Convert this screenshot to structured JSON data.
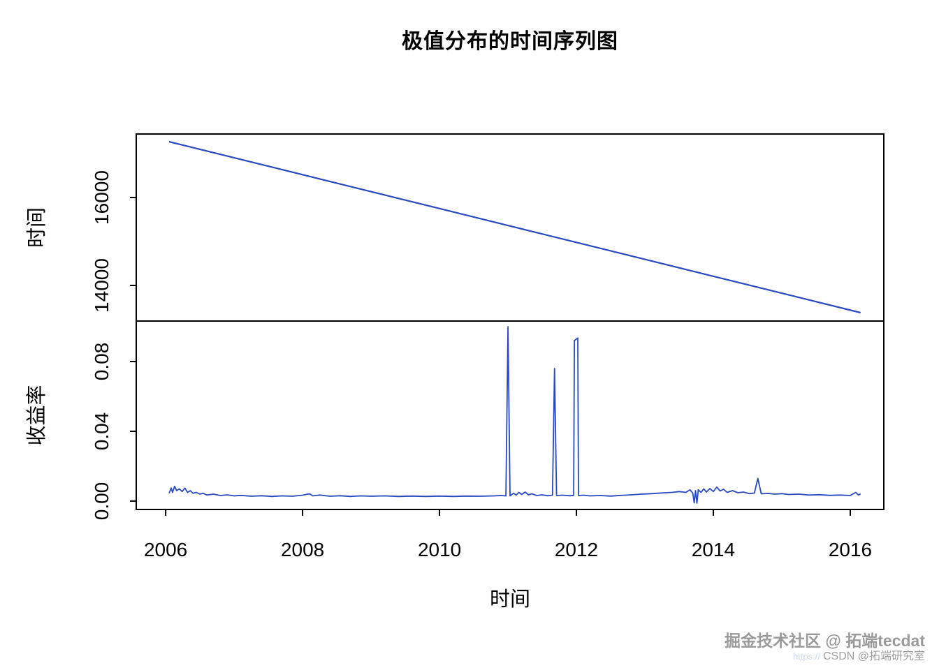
{
  "title": "极值分布的时间序列图",
  "x_axis": {
    "label": "时间",
    "ticks": [
      {
        "v": 2006,
        "label": "2006"
      },
      {
        "v": 2008,
        "label": "2008"
      },
      {
        "v": 2010,
        "label": "2010"
      },
      {
        "v": 2012,
        "label": "2012"
      },
      {
        "v": 2014,
        "label": "2014"
      },
      {
        "v": 2016,
        "label": "2016"
      }
    ]
  },
  "watermark": {
    "line1": "掘金技术社区 @ 拓端tecdat",
    "line2": "CSDN @拓端研究室",
    "url_fragment": "https://"
  },
  "colors": {
    "line": "#2a49c0",
    "axis": "#000000",
    "background": "#ffffff"
  },
  "chart_data": [
    {
      "type": "line",
      "name": "date-index-series",
      "ylabel": "时间",
      "xlim": [
        2005.57,
        2016.49
      ],
      "ylim": [
        13190,
        17444
      ],
      "yticks": [
        {
          "v": 14000,
          "label": "14000"
        },
        {
          "v": 16000,
          "label": "16000"
        }
      ],
      "points": [
        [
          2006.05,
          17270
        ],
        [
          2016.15,
          13380
        ]
      ]
    },
    {
      "type": "line",
      "name": "return-rate-series",
      "ylabel": "收益率",
      "xlim": [
        2005.57,
        2016.49
      ],
      "ylim": [
        -0.0048,
        0.1032
      ],
      "yticks": [
        {
          "v": 0,
          "label": "0.00"
        },
        {
          "v": 0.04,
          "label": "0.04"
        },
        {
          "v": 0.08,
          "label": "0.08"
        }
      ],
      "points": [
        [
          2006.05,
          0.0045
        ],
        [
          2006.08,
          0.0075
        ],
        [
          2006.1,
          0.005
        ],
        [
          2006.13,
          0.0085
        ],
        [
          2006.16,
          0.006
        ],
        [
          2006.2,
          0.007
        ],
        [
          2006.24,
          0.0055
        ],
        [
          2006.28,
          0.0075
        ],
        [
          2006.32,
          0.005
        ],
        [
          2006.36,
          0.006
        ],
        [
          2006.4,
          0.0045
        ],
        [
          2006.45,
          0.005
        ],
        [
          2006.5,
          0.004
        ],
        [
          2006.55,
          0.0045
        ],
        [
          2006.6,
          0.0035
        ],
        [
          2006.7,
          0.004
        ],
        [
          2006.8,
          0.0032
        ],
        [
          2006.9,
          0.0036
        ],
        [
          2007.0,
          0.003
        ],
        [
          2007.1,
          0.0033
        ],
        [
          2007.25,
          0.0028
        ],
        [
          2007.4,
          0.0031
        ],
        [
          2007.55,
          0.0027
        ],
        [
          2007.7,
          0.003
        ],
        [
          2007.85,
          0.0028
        ],
        [
          2008.0,
          0.0034
        ],
        [
          2008.1,
          0.0042
        ],
        [
          2008.15,
          0.003
        ],
        [
          2008.25,
          0.0035
        ],
        [
          2008.4,
          0.0028
        ],
        [
          2008.55,
          0.0031
        ],
        [
          2008.7,
          0.0027
        ],
        [
          2008.85,
          0.003
        ],
        [
          2009.0,
          0.0028
        ],
        [
          2009.2,
          0.003
        ],
        [
          2009.4,
          0.0027
        ],
        [
          2009.6,
          0.0029
        ],
        [
          2009.8,
          0.0027
        ],
        [
          2010.0,
          0.0029
        ],
        [
          2010.2,
          0.0027
        ],
        [
          2010.4,
          0.0029
        ],
        [
          2010.6,
          0.0028
        ],
        [
          2010.8,
          0.003
        ],
        [
          2010.9,
          0.0032
        ],
        [
          2010.97,
          0.003
        ],
        [
          2011.0,
          0.1
        ],
        [
          2011.03,
          0.003
        ],
        [
          2011.08,
          0.0045
        ],
        [
          2011.12,
          0.0035
        ],
        [
          2011.16,
          0.005
        ],
        [
          2011.2,
          0.0038
        ],
        [
          2011.25,
          0.0052
        ],
        [
          2011.3,
          0.0036
        ],
        [
          2011.35,
          0.0042
        ],
        [
          2011.42,
          0.0032
        ],
        [
          2011.5,
          0.0036
        ],
        [
          2011.58,
          0.0031
        ],
        [
          2011.65,
          0.0034
        ],
        [
          2011.68,
          0.076
        ],
        [
          2011.71,
          0.0032
        ],
        [
          2011.8,
          0.0034
        ],
        [
          2011.9,
          0.0031
        ],
        [
          2011.96,
          0.0033
        ],
        [
          2011.97,
          0.092
        ],
        [
          2012.02,
          0.0935
        ],
        [
          2012.03,
          0.0032
        ],
        [
          2012.1,
          0.0034
        ],
        [
          2012.2,
          0.003
        ],
        [
          2012.35,
          0.0032
        ],
        [
          2012.5,
          0.0029
        ],
        [
          2012.65,
          0.0033
        ],
        [
          2012.8,
          0.0036
        ],
        [
          2012.95,
          0.004
        ],
        [
          2013.1,
          0.0043
        ],
        [
          2013.25,
          0.0047
        ],
        [
          2013.4,
          0.005
        ],
        [
          2013.5,
          0.0055
        ],
        [
          2013.6,
          0.005
        ],
        [
          2013.66,
          0.0065
        ],
        [
          2013.7,
          0.0045
        ],
        [
          2013.72,
          -0.001
        ],
        [
          2013.74,
          0.006
        ],
        [
          2013.76,
          -0.0012
        ],
        [
          2013.78,
          0.0065
        ],
        [
          2013.82,
          0.005
        ],
        [
          2013.86,
          0.007
        ],
        [
          2013.9,
          0.0052
        ],
        [
          2013.95,
          0.0072
        ],
        [
          2014.0,
          0.0055
        ],
        [
          2014.05,
          0.008
        ],
        [
          2014.1,
          0.0058
        ],
        [
          2014.15,
          0.0068
        ],
        [
          2014.2,
          0.005
        ],
        [
          2014.28,
          0.006
        ],
        [
          2014.36,
          0.0048
        ],
        [
          2014.44,
          0.0052
        ],
        [
          2014.52,
          0.0043
        ],
        [
          2014.6,
          0.0046
        ],
        [
          2014.65,
          0.013
        ],
        [
          2014.7,
          0.0042
        ],
        [
          2014.8,
          0.0044
        ],
        [
          2014.9,
          0.004
        ],
        [
          2015.0,
          0.0043
        ],
        [
          2015.1,
          0.0038
        ],
        [
          2015.25,
          0.004
        ],
        [
          2015.4,
          0.0035
        ],
        [
          2015.55,
          0.0037
        ],
        [
          2015.7,
          0.0033
        ],
        [
          2015.85,
          0.0035
        ],
        [
          2016.0,
          0.0032
        ],
        [
          2016.08,
          0.005
        ],
        [
          2016.12,
          0.0035
        ],
        [
          2016.15,
          0.0042
        ]
      ]
    }
  ]
}
